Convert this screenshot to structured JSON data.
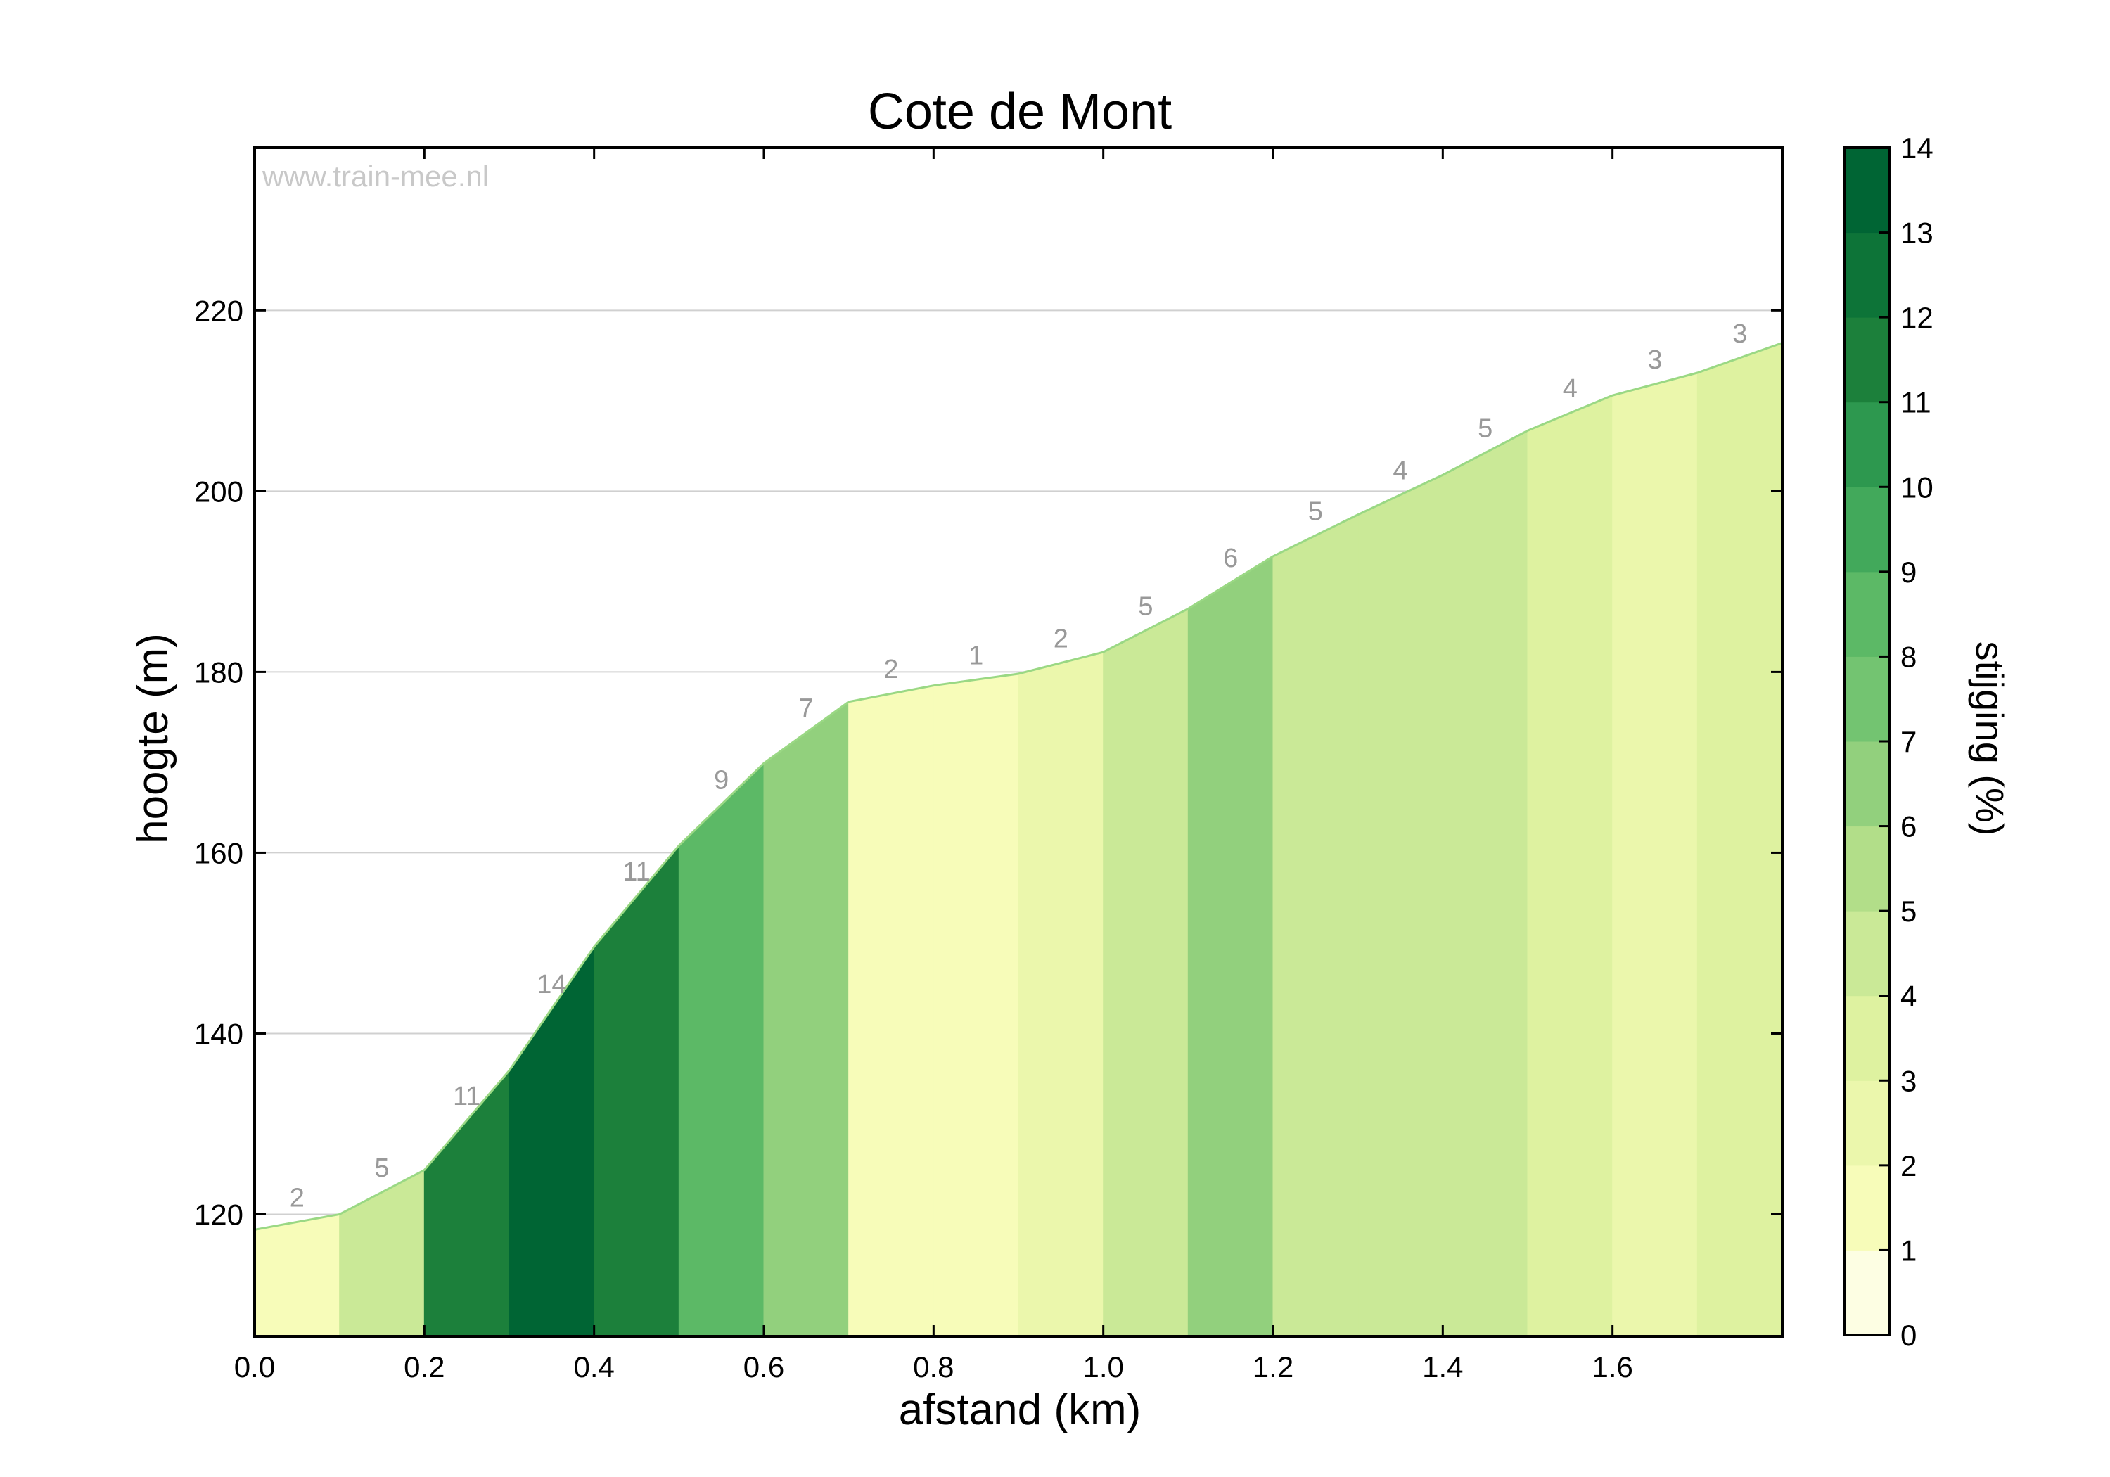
{
  "chart_data": {
    "type": "area",
    "title": "Cote de Mont",
    "xlabel": "afstand (km)",
    "ylabel": "hoogte (m)",
    "watermark": "www.train-mee.nl",
    "xlim": [
      0.0,
      1.8
    ],
    "ylim": [
      106.5,
      238
    ],
    "xticks": [
      "0.0",
      "0.2",
      "0.4",
      "0.6",
      "0.8",
      "1.0",
      "1.2",
      "1.4",
      "1.6"
    ],
    "xtick_values": [
      0.0,
      0.2,
      0.4,
      0.6,
      0.8,
      1.0,
      1.2,
      1.4,
      1.6
    ],
    "yticks": [
      "120",
      "140",
      "160",
      "180",
      "200",
      "220"
    ],
    "ytick_values": [
      120,
      140,
      160,
      180,
      200,
      220
    ],
    "grid": true,
    "x": [
      0.0,
      0.1,
      0.2,
      0.3,
      0.4,
      0.5,
      0.6,
      0.7,
      0.8,
      0.9,
      1.0,
      1.1,
      1.2,
      1.3,
      1.4,
      1.5,
      1.6,
      1.7,
      1.8
    ],
    "elevation": [
      118.3,
      120.0,
      124.9,
      135.9,
      149.6,
      160.8,
      169.9,
      176.7,
      178.5,
      179.8,
      182.2,
      187.0,
      192.8,
      197.4,
      201.8,
      206.7,
      210.6,
      213.1,
      216.4
    ],
    "segments": [
      {
        "start": 0.0,
        "end": 0.1,
        "grade": 2,
        "label": "2",
        "color": "#f7fcb9"
      },
      {
        "start": 0.1,
        "end": 0.2,
        "grade": 5,
        "label": "5",
        "color": "#cae997"
      },
      {
        "start": 0.2,
        "end": 0.3,
        "grade": 11,
        "label": "11",
        "color": "#1c803b"
      },
      {
        "start": 0.3,
        "end": 0.4,
        "grade": 14,
        "label": "14",
        "color": "#006534"
      },
      {
        "start": 0.4,
        "end": 0.5,
        "grade": 11,
        "label": "11",
        "color": "#1c803b"
      },
      {
        "start": 0.5,
        "end": 0.6,
        "grade": 9,
        "label": "9",
        "color": "#5cb966"
      },
      {
        "start": 0.6,
        "end": 0.7,
        "grade": 7,
        "label": "7",
        "color": "#92d07d"
      },
      {
        "start": 0.7,
        "end": 0.8,
        "grade": 2,
        "label": "2",
        "color": "#f7fcb9"
      },
      {
        "start": 0.8,
        "end": 0.9,
        "grade": 1,
        "label": "1",
        "color": "#f7fcb9"
      },
      {
        "start": 0.9,
        "end": 1.0,
        "grade": 2,
        "label": "2",
        "color": "#ebf7ac"
      },
      {
        "start": 1.0,
        "end": 1.1,
        "grade": 5,
        "label": "5",
        "color": "#cae997"
      },
      {
        "start": 1.1,
        "end": 1.2,
        "grade": 6,
        "label": "6",
        "color": "#92d07d"
      },
      {
        "start": 1.2,
        "end": 1.3,
        "grade": 5,
        "label": "5",
        "color": "#cae997"
      },
      {
        "start": 1.3,
        "end": 1.4,
        "grade": 4,
        "label": "4",
        "color": "#cae997"
      },
      {
        "start": 1.4,
        "end": 1.5,
        "grade": 5,
        "label": "5",
        "color": "#cae997"
      },
      {
        "start": 1.5,
        "end": 1.6,
        "grade": 4,
        "label": "4",
        "color": "#def2a0"
      },
      {
        "start": 1.6,
        "end": 1.7,
        "grade": 3,
        "label": "3",
        "color": "#ebf7ac"
      },
      {
        "start": 1.7,
        "end": 1.8,
        "grade": 3,
        "label": "3",
        "color": "#def2a0"
      }
    ],
    "colorbar": {
      "label": "stijging (%)",
      "range": [
        0,
        14
      ],
      "ticks": [
        "0",
        "1",
        "2",
        "3",
        "4",
        "5",
        "6",
        "7",
        "8",
        "9",
        "10",
        "11",
        "12",
        "13",
        "14"
      ],
      "colors": [
        "#fdfee3",
        "#f7fcb9",
        "#ebf7ac",
        "#def2a0",
        "#cae997",
        "#b2de89",
        "#92d07d",
        "#73c471",
        "#5cb966",
        "#42a95b",
        "#2d984f",
        "#1c803b",
        "#0d7438",
        "#006534"
      ]
    },
    "outline_color": "#9ad884",
    "label_color": "#999999"
  }
}
